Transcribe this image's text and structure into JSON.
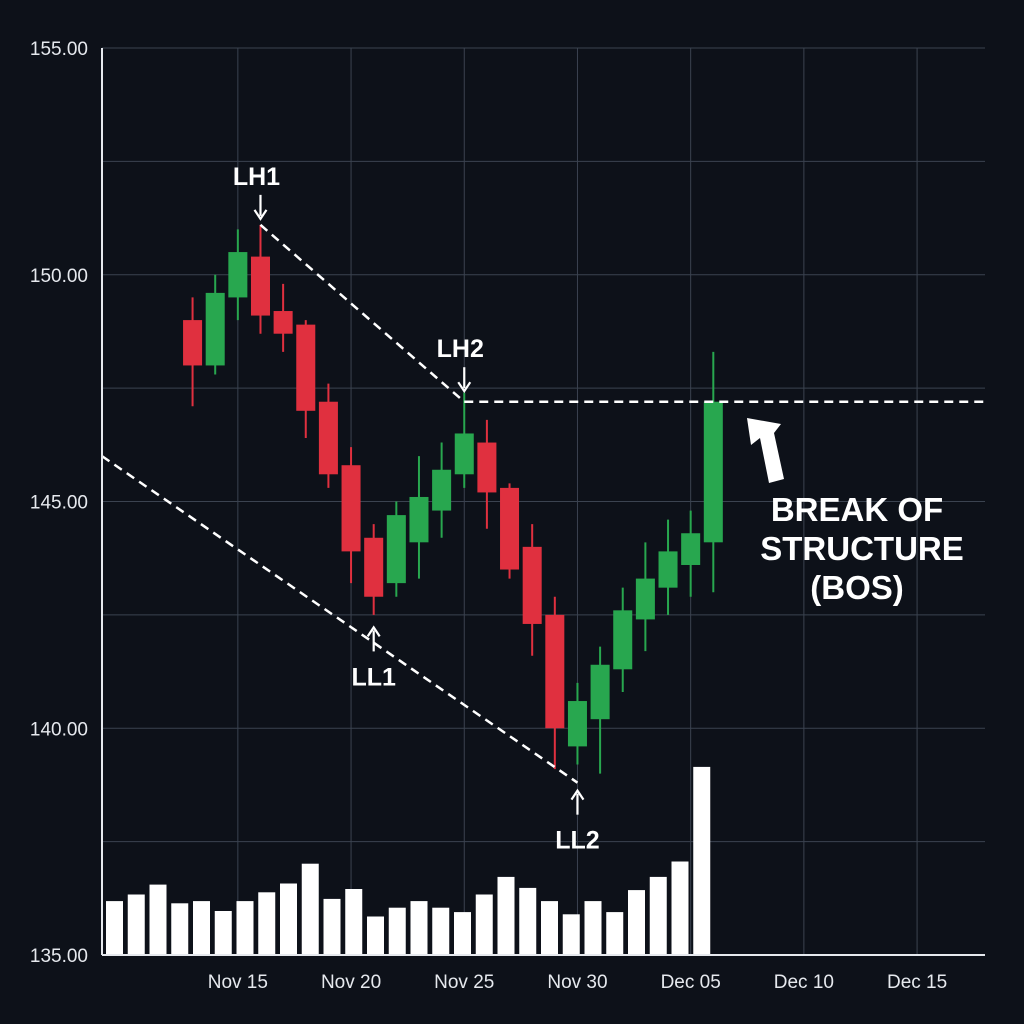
{
  "chart_data": {
    "type": "candlestick",
    "title": "",
    "xlabel": "",
    "ylabel": "",
    "ylim": [
      135,
      155
    ],
    "xlim": [
      "Nov 09",
      "Dec 18"
    ],
    "grid": true,
    "y_ticks": [
      "155.00",
      "150.00",
      "145.00",
      "140.00",
      "135.00"
    ],
    "x_ticks": [
      {
        "date": "Nov 15",
        "label": "Nov 15"
      },
      {
        "date": "Nov 20",
        "label": "Nov 20"
      },
      {
        "date": "Nov 25",
        "label": "Nov 25"
      },
      {
        "date": "Nov 30",
        "label": "Nov 30"
      },
      {
        "date": "Dec 05",
        "label": "Dec 05"
      },
      {
        "date": "Dec 10",
        "label": "Dec 10"
      },
      {
        "date": "Dec 15",
        "label": "Dec 15"
      }
    ],
    "candles": [
      {
        "date": "Nov 13",
        "open": 149.0,
        "high": 149.5,
        "low": 147.1,
        "close": 148.0
      },
      {
        "date": "Nov 14",
        "open": 148.0,
        "high": 150.0,
        "low": 147.8,
        "close": 149.6
      },
      {
        "date": "Nov 15",
        "open": 149.5,
        "high": 151.0,
        "low": 149.0,
        "close": 150.5
      },
      {
        "date": "Nov 16",
        "open": 150.4,
        "high": 151.1,
        "low": 148.7,
        "close": 149.1
      },
      {
        "date": "Nov 17",
        "open": 149.2,
        "high": 149.8,
        "low": 148.3,
        "close": 148.7
      },
      {
        "date": "Nov 18",
        "open": 148.9,
        "high": 149.0,
        "low": 146.4,
        "close": 147.0
      },
      {
        "date": "Nov 19",
        "open": 147.2,
        "high": 147.6,
        "low": 145.3,
        "close": 145.6
      },
      {
        "date": "Nov 20",
        "open": 145.8,
        "high": 146.2,
        "low": 143.2,
        "close": 143.9
      },
      {
        "date": "Nov 21",
        "open": 144.2,
        "high": 144.5,
        "low": 142.5,
        "close": 142.9
      },
      {
        "date": "Nov 22",
        "open": 143.2,
        "high": 145.0,
        "low": 142.9,
        "close": 144.7
      },
      {
        "date": "Nov 23",
        "open": 144.1,
        "high": 146.0,
        "low": 143.3,
        "close": 145.1
      },
      {
        "date": "Nov 24",
        "open": 144.8,
        "high": 146.3,
        "low": 144.2,
        "close": 145.7
      },
      {
        "date": "Nov 25",
        "open": 145.6,
        "high": 147.4,
        "low": 145.3,
        "close": 146.5
      },
      {
        "date": "Nov 26",
        "open": 146.3,
        "high": 146.8,
        "low": 144.4,
        "close": 145.2
      },
      {
        "date": "Nov 27",
        "open": 145.3,
        "high": 145.4,
        "low": 143.3,
        "close": 143.5
      },
      {
        "date": "Nov 28",
        "open": 144.0,
        "high": 144.5,
        "low": 141.6,
        "close": 142.3
      },
      {
        "date": "Nov 29",
        "open": 142.5,
        "high": 142.9,
        "low": 139.1,
        "close": 140.0
      },
      {
        "date": "Nov 30",
        "open": 139.6,
        "high": 141.0,
        "low": 139.2,
        "close": 140.6
      },
      {
        "date": "Dec 01",
        "open": 140.2,
        "high": 141.8,
        "low": 139.0,
        "close": 141.4
      },
      {
        "date": "Dec 02",
        "open": 141.3,
        "high": 143.1,
        "low": 140.8,
        "close": 142.6
      },
      {
        "date": "Dec 03",
        "open": 142.4,
        "high": 144.1,
        "low": 141.7,
        "close": 143.3
      },
      {
        "date": "Dec 04",
        "open": 143.1,
        "high": 144.6,
        "low": 142.5,
        "close": 143.9
      },
      {
        "date": "Dec 05",
        "open": 143.6,
        "high": 144.8,
        "low": 142.9,
        "close": 144.3
      },
      {
        "date": "Dec 06",
        "open": 144.1,
        "high": 148.3,
        "low": 143.0,
        "close": 147.2
      }
    ],
    "volume": [
      2.45,
      2.75,
      3.2,
      2.35,
      2.45,
      2.0,
      2.45,
      2.85,
      3.25,
      4.15,
      2.55,
      3.0,
      1.75,
      2.15,
      2.45,
      2.15,
      1.95,
      2.75,
      3.55,
      3.05,
      2.45,
      1.85,
      2.45,
      1.95,
      2.95,
      3.55,
      4.25,
      8.55
    ],
    "colors": {
      "up": "#28a74f",
      "down": "#e0303f",
      "volume": "#ffffff",
      "grid": "#3b4350",
      "background": "#0d1119"
    },
    "annotations": [
      {
        "label": "LH1",
        "date": "Nov 16",
        "price": 151.1,
        "arrow": "down"
      },
      {
        "label": "LH2",
        "date": "Nov 25",
        "price": 147.3,
        "arrow": "down"
      },
      {
        "label": "LL1",
        "date": "Nov 21",
        "price": 142.4,
        "arrow": "up"
      },
      {
        "label": "LL2",
        "date": "Nov 30",
        "price": 138.8,
        "arrow": "up"
      }
    ],
    "trendlines": [
      {
        "from": {
          "date": "Nov 16",
          "price": 151.1
        },
        "to": {
          "date": "Nov 25",
          "price": 147.2
        }
      },
      {
        "from": {
          "date": "Nov 09",
          "price": 146.0
        },
        "to": {
          "date": "Nov 30",
          "price": 138.8
        }
      }
    ],
    "bos_level": 147.2,
    "bos_label": [
      "BREAK OF",
      "STRUCTURE",
      "(BOS)"
    ]
  }
}
